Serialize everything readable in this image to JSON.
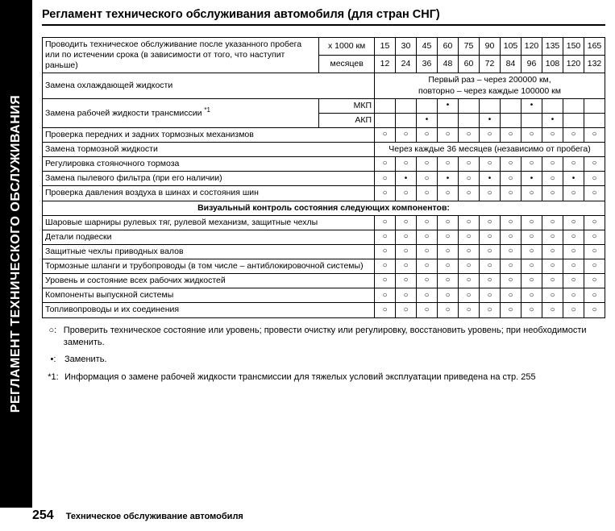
{
  "sidebar_label": "РЕГЛАМЕНТ ТЕХНИЧЕСКОГО ОБСЛУЖИВАНИЯ",
  "page_title": "Регламент технического обслуживания автомобиля (для стран СНГ)",
  "header": {
    "intro_lines": "Проводить техническое обслуживание после указанного пробега или по истечении срока (в зависимости от того, что наступит раньше)",
    "row_km_label": "х 1000 км",
    "row_month_label": "месяцев",
    "km_values": [
      "15",
      "30",
      "45",
      "60",
      "75",
      "90",
      "105",
      "120",
      "135",
      "150",
      "165"
    ],
    "month_values": [
      "12",
      "24",
      "36",
      "48",
      "60",
      "72",
      "84",
      "96",
      "108",
      "120",
      "132"
    ]
  },
  "rows": [
    {
      "label": "Замена охлаждающей жидкости",
      "spanText": "Первый раз – через 200000 км,\nповторно – через каждые 100000 км"
    },
    {
      "label": "Замена рабочей жидкости трансмиссии ",
      "sup": "*1",
      "subrows": [
        {
          "sub": "МКП",
          "marks": [
            "",
            "",
            "",
            "•",
            "",
            "",
            "",
            "•",
            "",
            "",
            ""
          ]
        },
        {
          "sub": "АКП",
          "marks": [
            "",
            "",
            "•",
            "",
            "",
            "•",
            "",
            "",
            "•",
            "",
            ""
          ]
        }
      ]
    },
    {
      "label": "Проверка передних и задних тормозных механизмов",
      "marks": [
        "○",
        "○",
        "○",
        "○",
        "○",
        "○",
        "○",
        "○",
        "○",
        "○",
        "○"
      ]
    },
    {
      "label": "Замена тормозной жидкости",
      "spanText": "Через каждые 36 месяцев (независимо от пробега)"
    },
    {
      "label": "Регулировка стояночного тормоза",
      "marks": [
        "○",
        "○",
        "○",
        "○",
        "○",
        "○",
        "○",
        "○",
        "○",
        "○",
        "○"
      ]
    },
    {
      "label": "Замена пылевого фильтра (при его наличии)",
      "marks": [
        "○",
        "•",
        "○",
        "•",
        "○",
        "•",
        "○",
        "•",
        "○",
        "•",
        "○"
      ]
    },
    {
      "label": "Проверка давления воздуха в шинах и состояния шин",
      "marks": [
        "○",
        "○",
        "○",
        "○",
        "○",
        "○",
        "○",
        "○",
        "○",
        "○",
        "○"
      ]
    }
  ],
  "visual_section_header": "Визуальный контроль состояния следующих компонентов:",
  "visual_rows": [
    {
      "label": "Шаровые шарниры рулевых тяг, рулевой механизм, защитные чехлы",
      "marks": [
        "○",
        "○",
        "○",
        "○",
        "○",
        "○",
        "○",
        "○",
        "○",
        "○",
        "○"
      ]
    },
    {
      "label": "Детали подвески",
      "marks": [
        "○",
        "○",
        "○",
        "○",
        "○",
        "○",
        "○",
        "○",
        "○",
        "○",
        "○"
      ]
    },
    {
      "label": "Защитные чехлы приводных валов",
      "marks": [
        "○",
        "○",
        "○",
        "○",
        "○",
        "○",
        "○",
        "○",
        "○",
        "○",
        "○"
      ]
    },
    {
      "label": "Тормозные шланги и трубопроводы (в том числе – антиблокировочной системы)",
      "marks": [
        "○",
        "○",
        "○",
        "○",
        "○",
        "○",
        "○",
        "○",
        "○",
        "○",
        "○"
      ]
    },
    {
      "label": "Уровень и состояние всех рабочих жидкостей",
      "marks": [
        "○",
        "○",
        "○",
        "○",
        "○",
        "○",
        "○",
        "○",
        "○",
        "○",
        "○"
      ]
    },
    {
      "label": "Компоненты выпускной системы",
      "marks": [
        "○",
        "○",
        "○",
        "○",
        "○",
        "○",
        "○",
        "○",
        "○",
        "○",
        "○"
      ]
    },
    {
      "label": "Топливопроводы и их соединения",
      "marks": [
        "○",
        "○",
        "○",
        "○",
        "○",
        "○",
        "○",
        "○",
        "○",
        "○",
        "○"
      ]
    }
  ],
  "legend": {
    "circle_sym": "○:",
    "circle_text": "Проверить техническое состояние или уровень; провести очистку или регулировку, восстановить уровень; при необходимости заменить.",
    "dot_sym": "•:",
    "dot_text": "Заменить.",
    "note_sym": "*1:",
    "note_text": "Информация о замене рабочей жидкости трансмиссии для тяжелых условий эксплуатации приведена на стр. 255"
  },
  "footer": {
    "page_no": "254",
    "section": "Техническое обслуживание автомобиля"
  },
  "symbols": {
    "circle": "○",
    "dot": "•"
  },
  "colors": {
    "bg": "#ffffff",
    "fg": "#000000"
  }
}
